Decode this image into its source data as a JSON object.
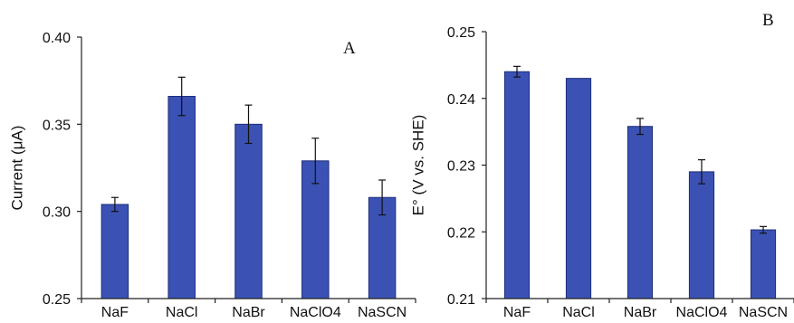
{
  "colors": {
    "bar_fill": "#3b52b4",
    "bar_stroke": "#1f2f7a",
    "axis": "#222222",
    "error_bar": "#111111"
  },
  "chart_data": [
    {
      "type": "bar",
      "panel_label": "A",
      "ylabel": "Current (μA)",
      "categories": [
        "NaF",
        "NaCl",
        "NaBr",
        "NaClO4",
        "NaSCN"
      ],
      "values": [
        0.304,
        0.366,
        0.35,
        0.329,
        0.308
      ],
      "errors": [
        0.004,
        0.011,
        0.011,
        0.013,
        0.01
      ],
      "ylim": [
        0.25,
        0.4
      ],
      "yticks": [
        "0.25",
        "0.30",
        "0.35",
        "0.40"
      ],
      "grid": false
    },
    {
      "type": "bar",
      "panel_label": "B",
      "ylabel": "E° (V vs. SHE)",
      "categories": [
        "NaF",
        "NaCl",
        "NaBr",
        "NaClO4",
        "NaSCN"
      ],
      "values": [
        0.244,
        0.243,
        0.2358,
        0.229,
        0.2203
      ],
      "errors": [
        0.0008,
        0.0,
        0.0012,
        0.0018,
        0.0005
      ],
      "ylim": [
        0.21,
        0.25
      ],
      "yticks": [
        "0.21",
        "0.22",
        "0.23",
        "0.24",
        "0.25"
      ],
      "grid": false
    }
  ]
}
